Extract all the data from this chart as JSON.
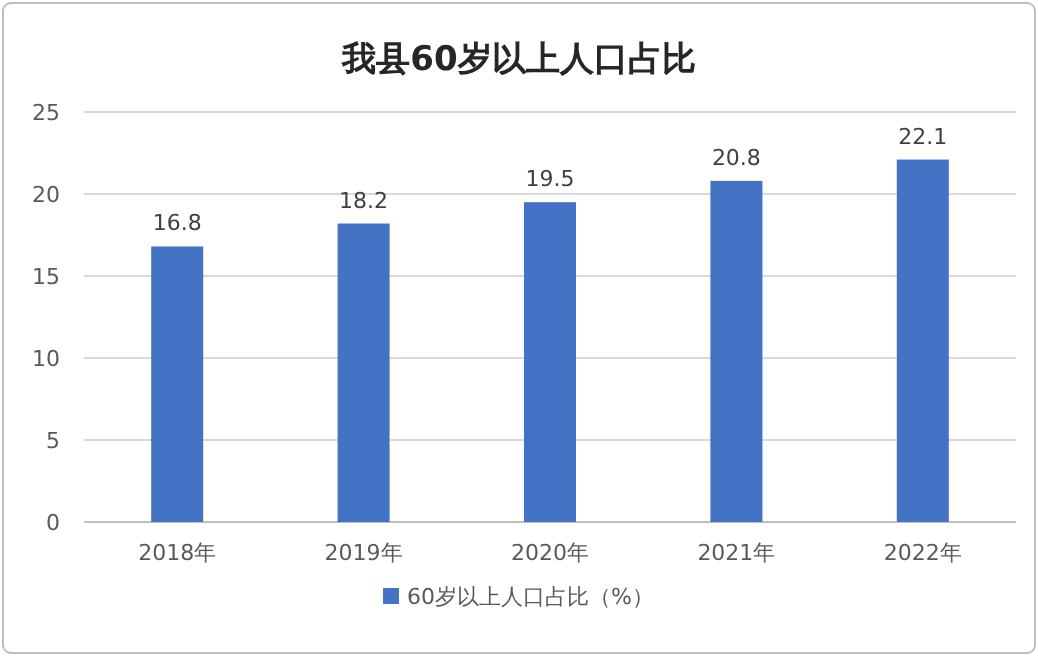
{
  "chart_data": {
    "type": "bar",
    "title": "我县60岁以上人口占比",
    "categories": [
      "2018年",
      "2019年",
      "2020年",
      "2021年",
      "2022年"
    ],
    "series": [
      {
        "name": "60岁以上人口占比（%）",
        "color": "#4472c4",
        "values": [
          16.8,
          18.2,
          19.5,
          20.8,
          22.1
        ]
      }
    ],
    "ylim": [
      0,
      25
    ],
    "yticks": [
      0,
      5,
      10,
      15,
      20,
      25
    ],
    "grid": "y",
    "legend": "bottom",
    "data_labels": true
  }
}
